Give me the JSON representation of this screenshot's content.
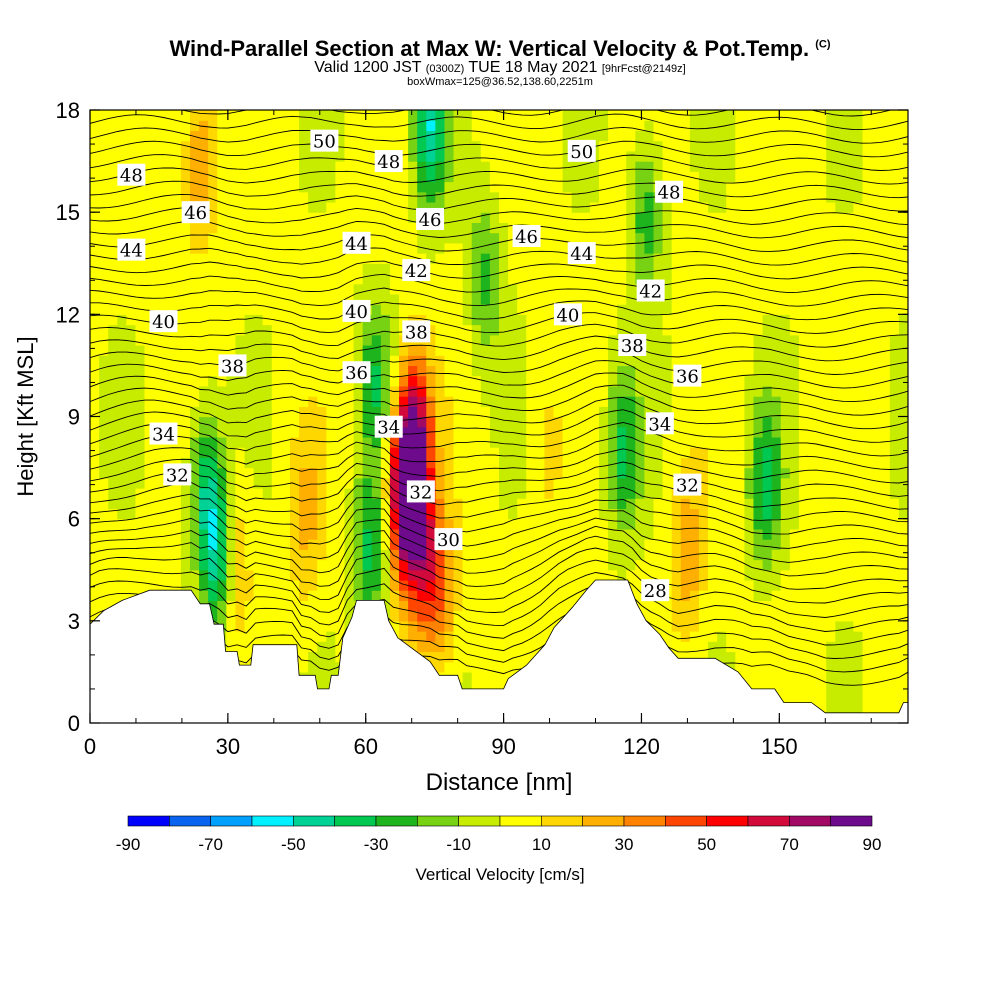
{
  "header": {
    "title": "Wind-Parallel Section at Max W: Vertical Velocity & Pot.Temp.",
    "title_mark": "(C)",
    "subtitle_main_a": "Valid 1200 JST",
    "subtitle_small_a": "(0300Z)",
    "subtitle_main_b": "TUE 18 May 2021",
    "subtitle_small_b": "[9hrFcst@2149z]",
    "subtitle2": "boxWmax=125@36.52,138.60,2251m"
  },
  "chart_data": {
    "type": "heatmap",
    "xlabel": "Distance [nm]",
    "ylabel": "Height [Kft MSL]",
    "xlim": [
      0,
      178
    ],
    "ylim": [
      0,
      18
    ],
    "x_ticks": [
      0,
      30,
      60,
      90,
      120,
      150
    ],
    "y_ticks": [
      0,
      3,
      6,
      9,
      12,
      15,
      18
    ],
    "colorbar": {
      "label": "Vertical Velocity [cm/s]",
      "tick_labels": [
        -90,
        -70,
        -50,
        -30,
        -10,
        10,
        30,
        50,
        70,
        90
      ],
      "levels": [
        -90,
        -80,
        -70,
        -60,
        -50,
        -40,
        -30,
        -20,
        -10,
        0,
        10,
        20,
        30,
        40,
        50,
        60,
        70,
        80,
        90
      ],
      "colors": [
        "#0000ff",
        "#0a64f0",
        "#00a0ff",
        "#00f0ff",
        "#00d296",
        "#00c850",
        "#1eb41e",
        "#78d214",
        "#c8ec00",
        "#ffff00",
        "#ffd700",
        "#ffaf00",
        "#ff8200",
        "#ff4600",
        "#ff0000",
        "#d20a3c",
        "#a00a64",
        "#6e0a8c"
      ]
    },
    "terrain_kft": [
      [
        0,
        2.9
      ],
      [
        3,
        3.3
      ],
      [
        7,
        3.6
      ],
      [
        13,
        3.9
      ],
      [
        22,
        3.9
      ],
      [
        24,
        3.5
      ],
      [
        26,
        3.5
      ],
      [
        27,
        2.9
      ],
      [
        29,
        2.9
      ],
      [
        29.5,
        2.1
      ],
      [
        32,
        2.1
      ],
      [
        32.5,
        1.7
      ],
      [
        35,
        1.7
      ],
      [
        35.5,
        2.3
      ],
      [
        45,
        2.3
      ],
      [
        45.5,
        1.4
      ],
      [
        49,
        1.4
      ],
      [
        49.5,
        1.0
      ],
      [
        52,
        1.0
      ],
      [
        52.5,
        1.4
      ],
      [
        54,
        1.4
      ],
      [
        55,
        2.5
      ],
      [
        57,
        3.1
      ],
      [
        58,
        3.6
      ],
      [
        64,
        3.6
      ],
      [
        65,
        3.0
      ],
      [
        67,
        2.5
      ],
      [
        70,
        2.2
      ],
      [
        74,
        1.8
      ],
      [
        76,
        1.4
      ],
      [
        80,
        1.4
      ],
      [
        81,
        1.0
      ],
      [
        90,
        1.0
      ],
      [
        91,
        1.3
      ],
      [
        95,
        1.7
      ],
      [
        99,
        2.3
      ],
      [
        101,
        2.8
      ],
      [
        105,
        3.4
      ],
      [
        108,
        3.9
      ],
      [
        110,
        4.2
      ],
      [
        117,
        4.2
      ],
      [
        119,
        3.5
      ],
      [
        121,
        3.0
      ],
      [
        124,
        2.6
      ],
      [
        126,
        2.2
      ],
      [
        128,
        1.9
      ],
      [
        131,
        1.9
      ],
      [
        136,
        1.9
      ],
      [
        141,
        1.5
      ],
      [
        144,
        1.0
      ],
      [
        149,
        1.0
      ],
      [
        151,
        0.6
      ],
      [
        157,
        0.6
      ],
      [
        160,
        0.3
      ],
      [
        176,
        0.3
      ],
      [
        177,
        0.6
      ],
      [
        178,
        0.6
      ]
    ],
    "w_centers_cm_s": [
      {
        "x": 68.5,
        "y": 6.8,
        "w": 90
      },
      {
        "x": 71,
        "y": 8.5,
        "w": 60
      },
      {
        "x": 72,
        "y": 5.0,
        "w": 45
      },
      {
        "x": 76,
        "y": 4.0,
        "w": 35
      },
      {
        "x": 31,
        "y": 5.0,
        "w": 25
      },
      {
        "x": 24,
        "y": 16.5,
        "w": 30
      },
      {
        "x": 47,
        "y": 6,
        "w": 20
      },
      {
        "x": 28,
        "y": 5,
        "w": -50
      },
      {
        "x": 25,
        "y": 7,
        "w": -35
      },
      {
        "x": 61,
        "y": 5,
        "w": -35
      },
      {
        "x": 62,
        "y": 10,
        "w": -30
      },
      {
        "x": 74,
        "y": 17.5,
        "w": -50
      },
      {
        "x": 86,
        "y": 13,
        "w": -25
      },
      {
        "x": 116,
        "y": 8,
        "w": -35
      },
      {
        "x": 121,
        "y": 15,
        "w": -30
      },
      {
        "x": 147,
        "y": 7,
        "w": -35
      },
      {
        "x": 130,
        "y": 5,
        "w": 25
      },
      {
        "x": 99,
        "y": 8,
        "w": 10
      }
    ],
    "theta_labels": [
      {
        "text": "48",
        "x": 9,
        "y": 16.1
      },
      {
        "text": "46",
        "x": 23,
        "y": 15.0
      },
      {
        "text": "50",
        "x": 51,
        "y": 17.1
      },
      {
        "text": "48",
        "x": 65,
        "y": 16.5
      },
      {
        "text": "46",
        "x": 74,
        "y": 14.8
      },
      {
        "text": "44",
        "x": 9,
        "y": 13.9
      },
      {
        "text": "44",
        "x": 58,
        "y": 14.1
      },
      {
        "text": "42",
        "x": 71,
        "y": 13.3
      },
      {
        "text": "46",
        "x": 95,
        "y": 14.3
      },
      {
        "text": "50",
        "x": 107,
        "y": 16.8
      },
      {
        "text": "48",
        "x": 126,
        "y": 15.6
      },
      {
        "text": "44",
        "x": 107,
        "y": 13.8
      },
      {
        "text": "42",
        "x": 122,
        "y": 12.7
      },
      {
        "text": "40",
        "x": 16,
        "y": 11.8
      },
      {
        "text": "40",
        "x": 58,
        "y": 12.1
      },
      {
        "text": "40",
        "x": 104,
        "y": 12.0
      },
      {
        "text": "38",
        "x": 71,
        "y": 11.5
      },
      {
        "text": "38",
        "x": 31,
        "y": 10.5
      },
      {
        "text": "38",
        "x": 118,
        "y": 11.1
      },
      {
        "text": "36",
        "x": 58,
        "y": 10.3
      },
      {
        "text": "36",
        "x": 130,
        "y": 10.2
      },
      {
        "text": "34",
        "x": 16,
        "y": 8.5
      },
      {
        "text": "34",
        "x": 65,
        "y": 8.7
      },
      {
        "text": "34",
        "x": 124,
        "y": 8.8
      },
      {
        "text": "32",
        "x": 19,
        "y": 7.3
      },
      {
        "text": "32",
        "x": 72,
        "y": 6.8
      },
      {
        "text": "32",
        "x": 130,
        "y": 7.0
      },
      {
        "text": "30",
        "x": 78,
        "y": 5.4
      },
      {
        "text": "28",
        "x": 123,
        "y": 3.9
      }
    ]
  }
}
